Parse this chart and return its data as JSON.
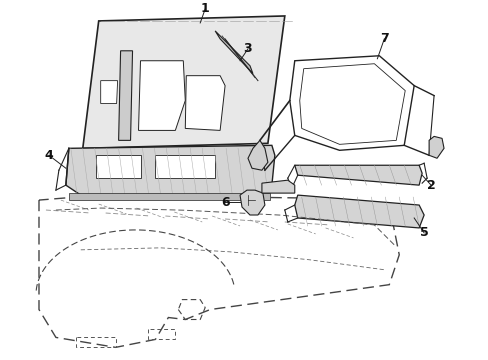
{
  "bg_color": "#ffffff",
  "line_color": "#222222",
  "gray_fill": "#d4d4d4",
  "light_gray": "#e8e8e8",
  "figsize": [
    4.89,
    3.6
  ],
  "dpi": 100
}
